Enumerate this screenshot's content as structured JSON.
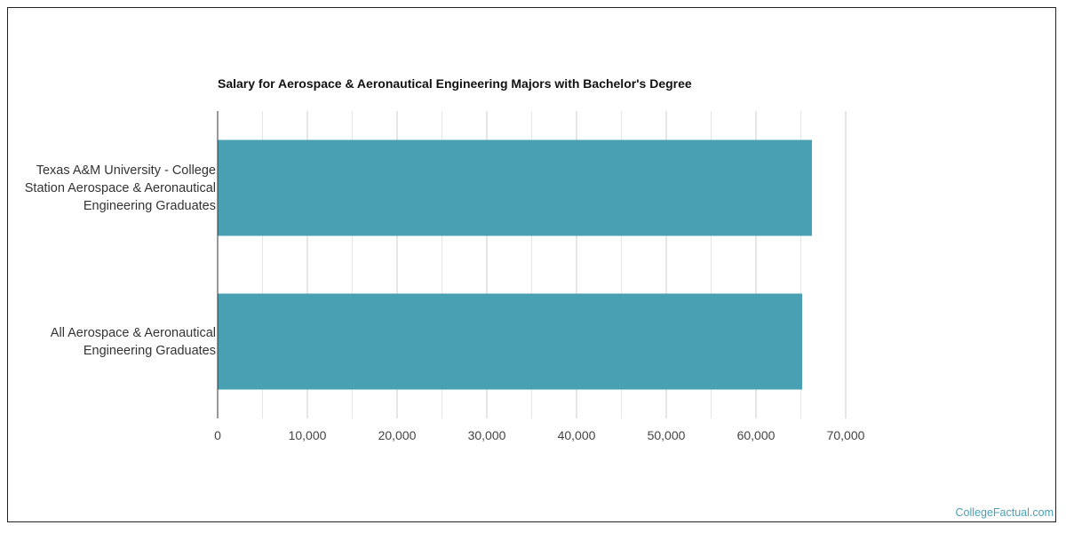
{
  "chart_data": {
    "type": "bar",
    "orientation": "horizontal",
    "title": "Salary for Aerospace & Aeronautical Engineering Majors with Bachelor's Degree",
    "categories": [
      "Texas A&M University - College\nStation Aerospace & Aeronautical\nEngineering Graduates",
      "All Aerospace & Aeronautical\nEngineering Graduates"
    ],
    "values": [
      66240,
      65150
    ],
    "xlim": [
      0,
      70000
    ],
    "xticks": [
      "0",
      "10,000",
      "20,000",
      "30,000",
      "40,000",
      "50,000",
      "60,000",
      "70,000"
    ],
    "grid": true,
    "bar_color": "#4aa0b3"
  },
  "credit": "CollegeFactual.com"
}
